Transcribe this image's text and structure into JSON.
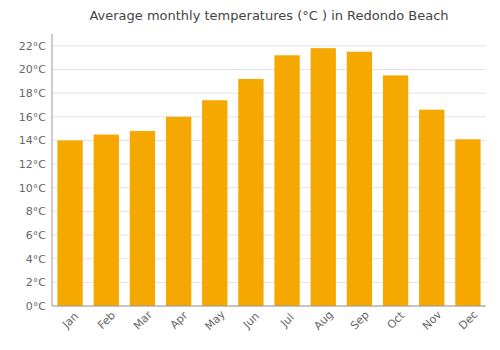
{
  "chart_data": {
    "type": "bar",
    "title": "Average monthly temperatures (°C ) in Redondo Beach",
    "categories": [
      "Jan",
      "Feb",
      "Mar",
      "Apr",
      "May",
      "Jun",
      "Jul",
      "Aug",
      "Sep",
      "Oct",
      "Nov",
      "Dec"
    ],
    "values": [
      14.0,
      14.5,
      14.8,
      16.0,
      17.4,
      19.2,
      21.2,
      21.8,
      21.5,
      19.5,
      16.6,
      14.1
    ],
    "color": "#F5A800",
    "ylim": [
      0,
      23
    ],
    "yticks": [
      {
        "value": 0,
        "label": "0°C"
      },
      {
        "value": 2,
        "label": "2°C"
      },
      {
        "value": 4,
        "label": "4°C"
      },
      {
        "value": 6,
        "label": "6°C"
      },
      {
        "value": 8,
        "label": "8°C"
      },
      {
        "value": 10,
        "label": "10°C"
      },
      {
        "value": 12,
        "label": "12°C"
      },
      {
        "value": 14,
        "label": "14°C"
      },
      {
        "value": 16,
        "label": "16°C"
      },
      {
        "value": 18,
        "label": "18°C"
      },
      {
        "value": 20,
        "label": "20°C"
      },
      {
        "value": 22,
        "label": "22°C"
      }
    ],
    "grid": true
  }
}
